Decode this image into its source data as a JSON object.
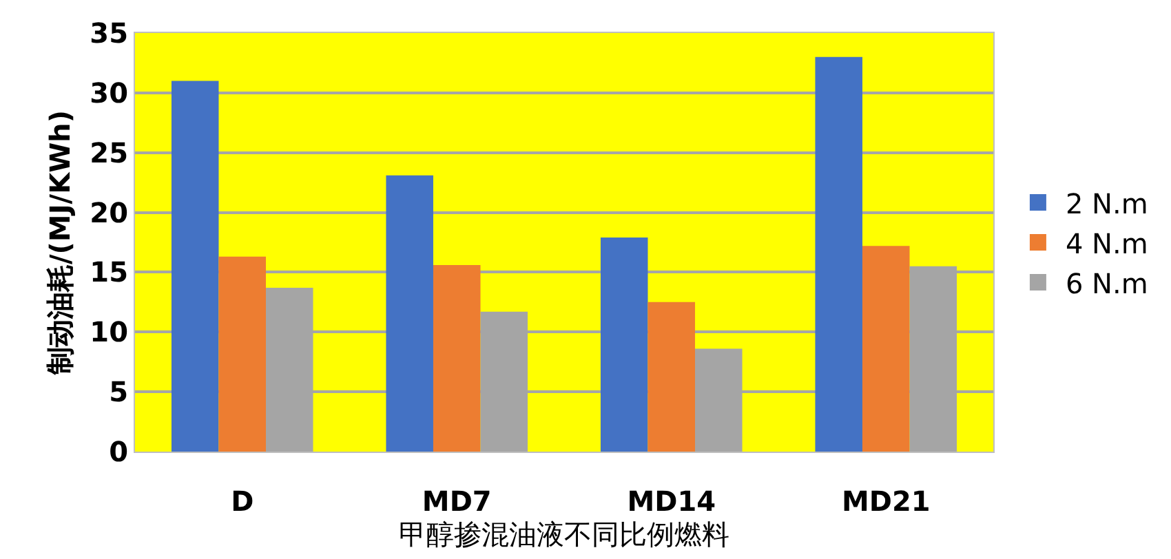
{
  "chart_data": {
    "type": "bar",
    "xlabel": "甲醇掺混油液不同比例燃料",
    "ylabel": "制动油耗/(MJ/KWh)",
    "categories": [
      "D",
      "MD7",
      "MD14",
      "MD21"
    ],
    "series": [
      {
        "name": "2 N.m",
        "color": "#4472c4",
        "values": [
          31.0,
          23.1,
          17.9,
          33.0
        ]
      },
      {
        "name": "4 N.m",
        "color": "#ed7d31",
        "values": [
          16.3,
          15.6,
          12.5,
          17.2
        ]
      },
      {
        "name": "6 N.m",
        "color": "#a5a5a5",
        "values": [
          13.7,
          11.7,
          8.6,
          15.5
        ]
      }
    ],
    "ylim": [
      0,
      35
    ],
    "yticks": [
      0,
      5,
      10,
      15,
      20,
      25,
      30,
      35
    ],
    "grid": "y",
    "legend": "right"
  }
}
